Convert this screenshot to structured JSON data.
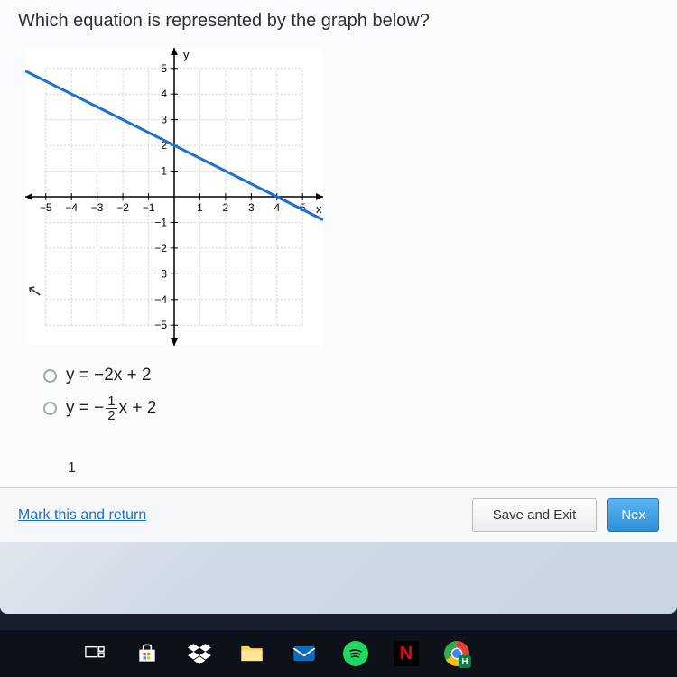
{
  "question": {
    "text": "Which equation is represented by the graph below?",
    "fontsize": 20,
    "color": "#2a2f38"
  },
  "chart": {
    "type": "line",
    "xlim": [
      -5.8,
      5.8
    ],
    "ylim": [
      -5.8,
      5.8
    ],
    "xtick_step": 1,
    "ytick_step": 1,
    "xticks": [
      -5,
      -4,
      -3,
      -2,
      -1,
      1,
      2,
      3,
      4,
      5
    ],
    "yticks": [
      -5,
      -4,
      -3,
      -2,
      -1,
      1,
      2,
      3,
      4,
      5
    ],
    "xlabel": "x",
    "ylabel": "y",
    "grid_color": "#cfcfcf",
    "axis_color": "#000000",
    "background_color": "#ffffff",
    "line": {
      "points": [
        [
          -5.8,
          4.9
        ],
        [
          5.8,
          -0.9
        ]
      ],
      "color": "#1f6fd1",
      "width": 3
    },
    "divider": {
      "x": 5.9,
      "color": "#1f6fd1",
      "width": 4
    },
    "tick_fontsize": 12,
    "axis_label_fontsize": 13
  },
  "answers": [
    {
      "display": "y = −2x + 2",
      "type": "plain"
    },
    {
      "display_prefix": "y = −",
      "frac_num": "1",
      "frac_den": "2",
      "display_suffix": "x + 2",
      "type": "fraction"
    }
  ],
  "stray": {
    "char": "1"
  },
  "footer": {
    "mark_label": "Mark this and return",
    "save_label": "Save and Exit",
    "next_label": "Nex"
  },
  "taskbar": {
    "netflix_letter": "N",
    "chrome_badge": "H"
  },
  "colors": {
    "panel_bg": "#fafbfc",
    "link": "#1a6fc9",
    "btn_primary_top": "#5bb4f0",
    "btn_primary_bottom": "#2e8fd8",
    "taskbar_bg": "#0c111a"
  }
}
